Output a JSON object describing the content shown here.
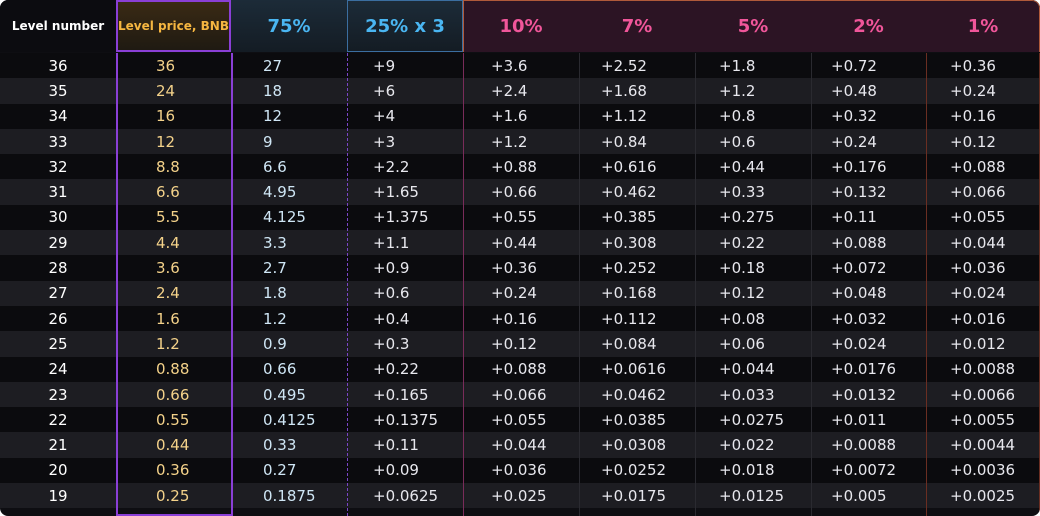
{
  "headers": {
    "level_number": "Level number",
    "level_price": "Level price, BNB",
    "p75": "75%",
    "p25x3": "25% x 3",
    "p10": "10%",
    "p7": "7%",
    "p5": "5%",
    "p2": "2%",
    "p1": "1%"
  },
  "rows": [
    [
      "36",
      "36",
      "27",
      "+9",
      "+3.6",
      "+2.52",
      "+1.8",
      "+0.72",
      "+0.36"
    ],
    [
      "35",
      "24",
      "18",
      "+6",
      "+2.4",
      "+1.68",
      "+1.2",
      "+0.48",
      "+0.24"
    ],
    [
      "34",
      "16",
      "12",
      "+4",
      "+1.6",
      "+1.12",
      "+0.8",
      "+0.32",
      "+0.16"
    ],
    [
      "33",
      "12",
      "9",
      "+3",
      "+1.2",
      "+0.84",
      "+0.6",
      "+0.24",
      "+0.12"
    ],
    [
      "32",
      "8.8",
      "6.6",
      "+2.2",
      "+0.88",
      "+0.616",
      "+0.44",
      "+0.176",
      "+0.088"
    ],
    [
      "31",
      "6.6",
      "4.95",
      "+1.65",
      "+0.66",
      "+0.462",
      "+0.33",
      "+0.132",
      "+0.066"
    ],
    [
      "30",
      "5.5",
      "4.125",
      "+1.375",
      "+0.55",
      "+0.385",
      "+0.275",
      "+0.11",
      "+0.055"
    ],
    [
      "29",
      "4.4",
      "3.3",
      "+1.1",
      "+0.44",
      "+0.308",
      "+0.22",
      "+0.088",
      "+0.044"
    ],
    [
      "28",
      "3.6",
      "2.7",
      "+0.9",
      "+0.36",
      "+0.252",
      "+0.18",
      "+0.072",
      "+0.036"
    ],
    [
      "27",
      "2.4",
      "1.8",
      "+0.6",
      "+0.24",
      "+0.168",
      "+0.12",
      "+0.048",
      "+0.024"
    ],
    [
      "26",
      "1.6",
      "1.2",
      "+0.4",
      "+0.16",
      "+0.112",
      "+0.08",
      "+0.032",
      "+0.016"
    ],
    [
      "25",
      "1.2",
      "0.9",
      "+0.3",
      "+0.12",
      "+0.084",
      "+0.06",
      "+0.024",
      "+0.012"
    ],
    [
      "24",
      "0.88",
      "0.66",
      "+0.22",
      "+0.088",
      "+0.0616",
      "+0.044",
      "+0.0176",
      "+0.0088"
    ],
    [
      "23",
      "0.66",
      "0.495",
      "+0.165",
      "+0.066",
      "+0.0462",
      "+0.033",
      "+0.0132",
      "+0.0066"
    ],
    [
      "22",
      "0.55",
      "0.4125",
      "+0.1375",
      "+0.055",
      "+0.0385",
      "+0.0275",
      "+0.011",
      "+0.0055"
    ],
    [
      "21",
      "0.44",
      "0.33",
      "+0.11",
      "+0.044",
      "+0.0308",
      "+0.022",
      "+0.0088",
      "+0.0044"
    ],
    [
      "20",
      "0.36",
      "0.27",
      "+0.09",
      "+0.036",
      "+0.0252",
      "+0.018",
      "+0.0072",
      "+0.0036"
    ],
    [
      "19",
      "0.25",
      "0.1875",
      "+0.0625",
      "+0.025",
      "+0.0175",
      "+0.0125",
      "+0.005",
      "+0.0025"
    ]
  ],
  "colors": {
    "level_price_header": "#f5b640",
    "blue_header": "#4ab6f2",
    "pink_header": "#f0569a",
    "purple_border": "#8a3fd6"
  }
}
